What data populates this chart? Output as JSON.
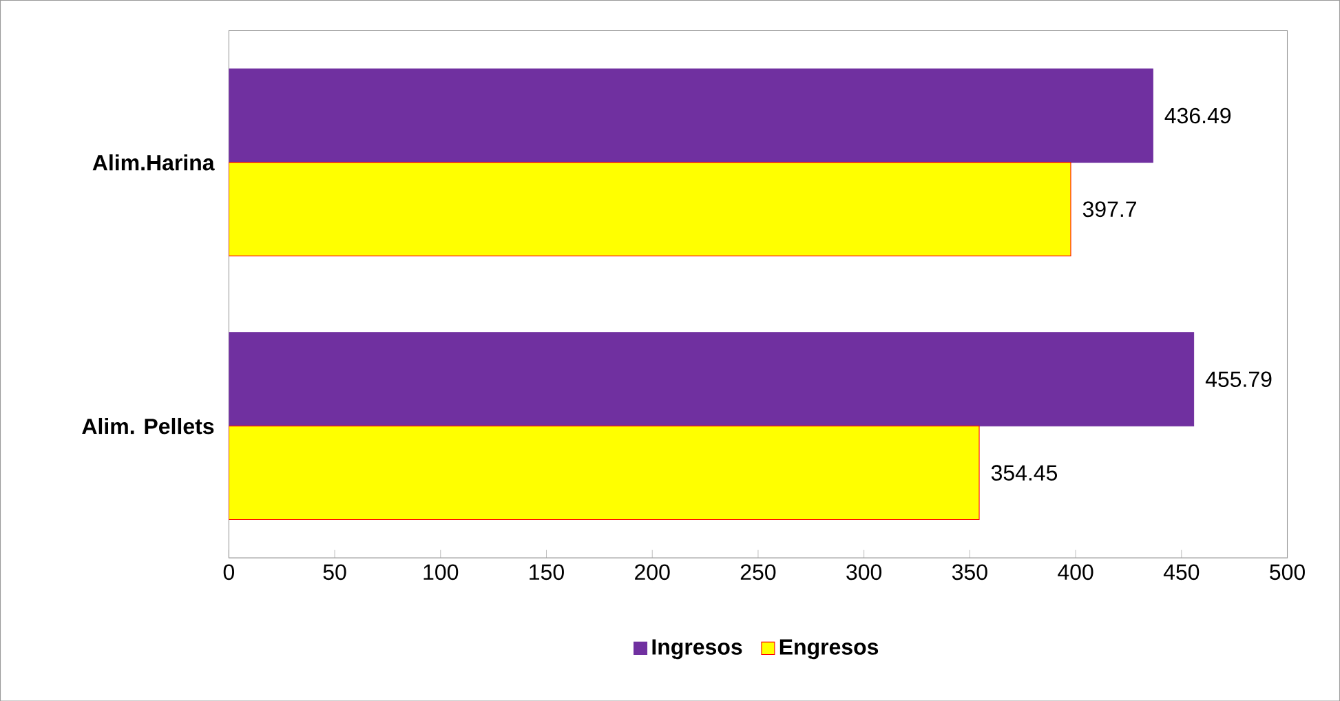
{
  "chart_data": {
    "type": "bar",
    "orientation": "horizontal",
    "categories": [
      "Alim.Harina",
      "Alim. Pellets"
    ],
    "series": [
      {
        "name": "Ingresos",
        "color": "#7030a0",
        "values": [
          436.49,
          455.79
        ]
      },
      {
        "name": "Engresos",
        "color": "#ffff00",
        "values": [
          397.7,
          354.45
        ]
      }
    ],
    "xlim": [
      0,
      500
    ],
    "xticks": [
      0,
      50,
      100,
      150,
      200,
      250,
      300,
      350,
      400,
      450,
      500
    ],
    "data_labels": true,
    "legend": "bottom",
    "grid": false
  }
}
